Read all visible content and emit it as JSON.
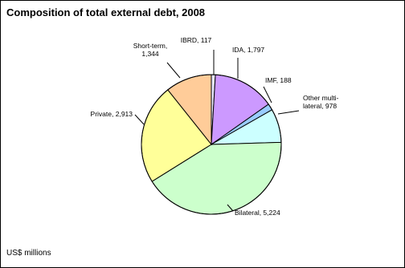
{
  "chart_data": {
    "type": "pie",
    "title": "Composition of total external debt, 2008",
    "unit_note": "US$ millions",
    "slices": [
      {
        "name": "IBRD",
        "value": 117,
        "color": "#E6E6FA",
        "label_lines": [
          "IBRD, 117"
        ]
      },
      {
        "name": "IDA",
        "value": 1797,
        "color": "#CC99FF",
        "label_lines": [
          "IDA, 1,797"
        ]
      },
      {
        "name": "IMF",
        "value": 188,
        "color": "#99CCFF",
        "label_lines": [
          "IMF, 188"
        ]
      },
      {
        "name": "Other multilateral",
        "value": 978,
        "color": "#CCFFFF",
        "label_lines": [
          "Other multi-",
          "lateral, 978"
        ]
      },
      {
        "name": "Bilateral",
        "value": 5224,
        "color": "#CCFFCC",
        "label_lines": [
          "Bilateral, 5,224"
        ]
      },
      {
        "name": "Private",
        "value": 2913,
        "color": "#FFFF99",
        "label_lines": [
          "Private, 2,913"
        ]
      },
      {
        "name": "Short-term",
        "value": 1344,
        "color": "#FFCC99",
        "label_lines": [
          "Short-term,",
          "1,344"
        ]
      }
    ]
  }
}
